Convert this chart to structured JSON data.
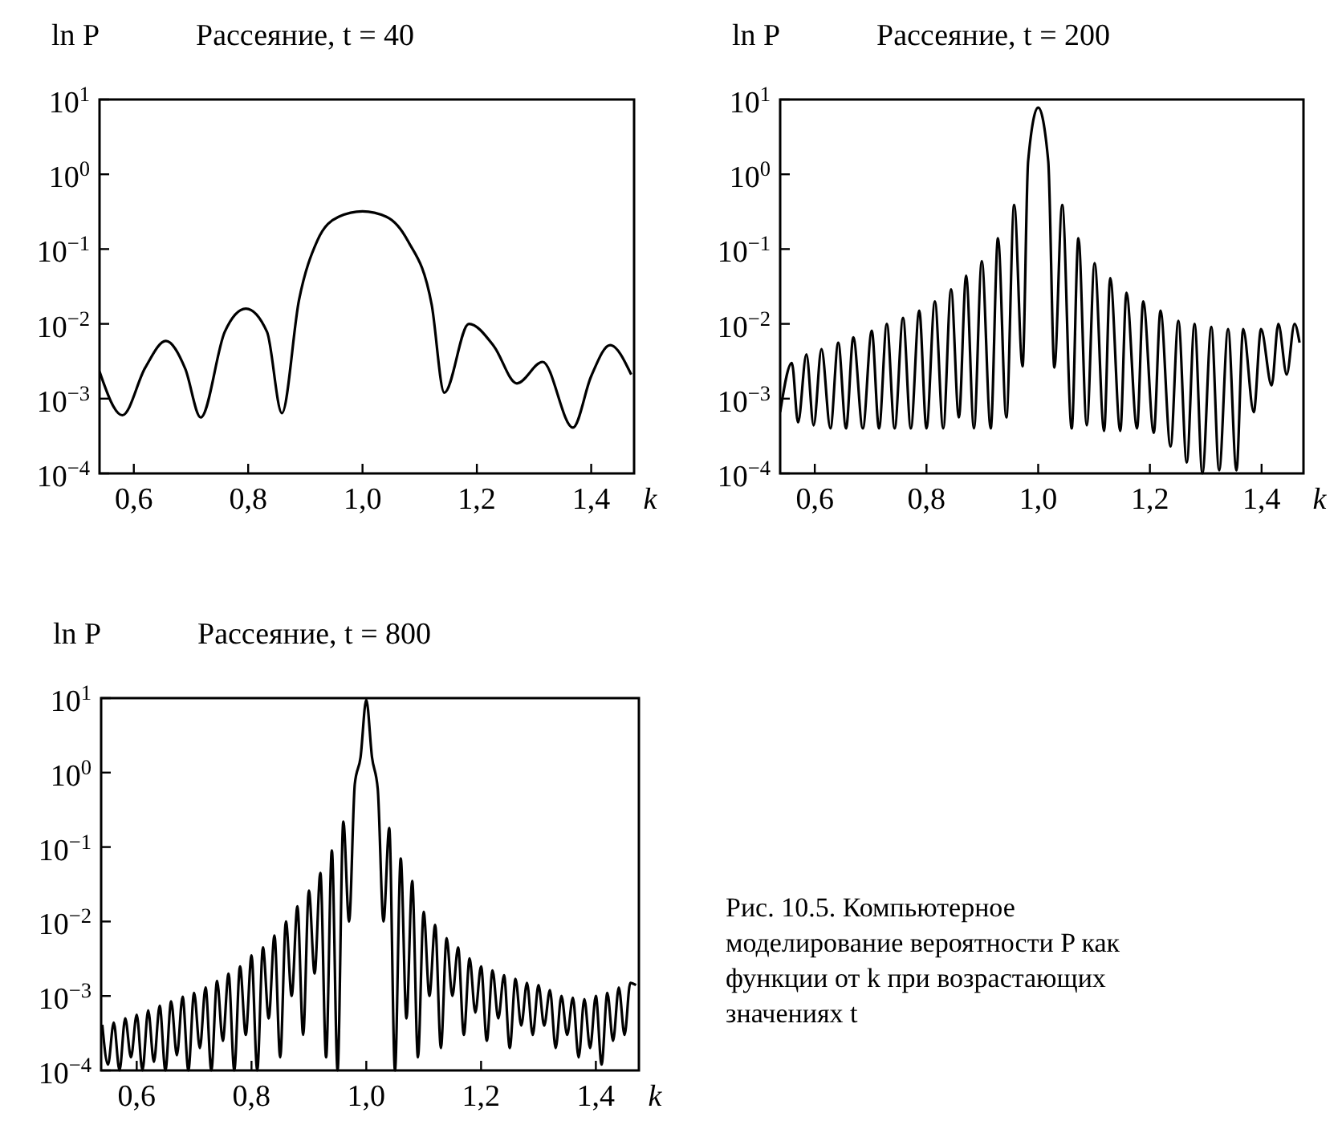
{
  "chart_data": [
    {
      "type": "line",
      "title": "Рассеяние,  t = 40",
      "ylabel": "ln P",
      "xlabel": "k",
      "log": "y",
      "xlim": [
        0.54,
        1.475
      ],
      "ylim": [
        0.0001,
        10
      ],
      "xticks": [
        {
          "value": 0.6,
          "label": "0,6"
        },
        {
          "value": 0.8,
          "label": "0,8"
        },
        {
          "value": 1.0,
          "label": "1,0"
        },
        {
          "value": 1.2,
          "label": "1,2"
        },
        {
          "value": 1.4,
          "label": "1,4"
        }
      ],
      "yticks": [
        {
          "value": 0.0001,
          "label": "10$^{−4}$"
        },
        {
          "value": 0.001,
          "label": "10$^{−3}$"
        },
        {
          "value": 0.01,
          "label": "10$^{−2}$"
        },
        {
          "value": 0.1,
          "label": "10$^{−1}$"
        },
        {
          "value": 1,
          "label": "10$^{0}$"
        },
        {
          "value": 10,
          "label": "10$^{1}$"
        }
      ],
      "series": [
        {
          "color": "#000000",
          "x": [
            0.54,
            0.58,
            0.62,
            0.656,
            0.69,
            0.717,
            0.759,
            0.796,
            0.833,
            0.859,
            0.889,
            0.921,
            0.958,
            1.0,
            1.042,
            1.079,
            1.121,
            1.143,
            1.186,
            1.23,
            1.27,
            1.315,
            1.368,
            1.4,
            1.433,
            1.47
          ],
          "values": [
            0.0023,
            0.0006,
            0.0026,
            0.0059,
            0.0025,
            0.00056,
            0.0078,
            0.016,
            0.0078,
            0.00064,
            0.021,
            0.13,
            0.27,
            0.32,
            0.27,
            0.13,
            0.018,
            0.0012,
            0.01,
            0.005,
            0.0016,
            0.0031,
            0.00041,
            0.002,
            0.0052,
            0.0021
          ]
        }
      ]
    },
    {
      "type": "line",
      "title": "Рассеяние,  t = 200",
      "ylabel": "ln P",
      "xlabel": "k",
      "log": "y",
      "xlim": [
        0.538,
        1.475
      ],
      "ylim": [
        0.0001,
        10
      ],
      "xticks": [
        {
          "value": 0.6,
          "label": "0,6"
        },
        {
          "value": 0.8,
          "label": "0,8"
        },
        {
          "value": 1.0,
          "label": "1,0"
        },
        {
          "value": 1.2,
          "label": "1,2"
        },
        {
          "value": 1.4,
          "label": "1,4"
        }
      ],
      "yticks": [
        {
          "value": 0.0001,
          "label": "10$^{−4}$"
        },
        {
          "value": 0.001,
          "label": "10$^{−3}$"
        },
        {
          "value": 0.01,
          "label": "10$^{−2}$"
        },
        {
          "value": 0.1,
          "label": "10$^{−1}$"
        },
        {
          "value": 1,
          "label": "10$^{0}$"
        },
        {
          "value": 10,
          "label": "10$^{1}$"
        }
      ],
      "series": [
        {
          "color": "#000000",
          "x": [
            0.538,
            0.559,
            0.57,
            0.585,
            0.598,
            0.612,
            0.628,
            0.642,
            0.656,
            0.669,
            0.686,
            0.702,
            0.715,
            0.729,
            0.743,
            0.758,
            0.772,
            0.787,
            0.8,
            0.815,
            0.83,
            0.844,
            0.858,
            0.871,
            0.885,
            0.899,
            0.915,
            0.928,
            0.943,
            0.957,
            0.972,
            0.982,
            1.0,
            1.018,
            1.029,
            1.043,
            1.06,
            1.072,
            1.087,
            1.101,
            1.118,
            1.129,
            1.147,
            1.158,
            1.177,
            1.188,
            1.207,
            1.219,
            1.237,
            1.251,
            1.266,
            1.28,
            1.294,
            1.31,
            1.324,
            1.34,
            1.355,
            1.367,
            1.386,
            1.399,
            1.418,
            1.43,
            1.445,
            1.459,
            1.468
          ],
          "values": [
            0.00066,
            0.003,
            0.00048,
            0.0039,
            0.00044,
            0.0046,
            0.0004,
            0.0056,
            0.0004,
            0.0066,
            0.0004,
            0.0081,
            0.0004,
            0.01,
            0.0004,
            0.012,
            0.0004,
            0.015,
            0.0004,
            0.02,
            0.0004,
            0.029,
            0.00056,
            0.044,
            0.0004,
            0.069,
            0.0004,
            0.14,
            0.00056,
            0.39,
            0.0027,
            1.5,
            7.8,
            1.5,
            0.0026,
            0.39,
            0.0004,
            0.14,
            0.00044,
            0.065,
            0.00037,
            0.041,
            0.00037,
            0.026,
            0.0004,
            0.02,
            0.00035,
            0.015,
            0.00023,
            0.011,
            0.00014,
            0.01,
            0.0001,
            0.0091,
            0.00011,
            0.0085,
            0.00011,
            0.0085,
            0.00066,
            0.0085,
            0.0015,
            0.01,
            0.0021,
            0.01,
            0.0056
          ]
        }
      ]
    },
    {
      "type": "line",
      "title": "Рассеяние,  t = 800",
      "ylabel": "ln P",
      "xlabel": "k",
      "log": "y",
      "xlim": [
        0.538,
        1.475
      ],
      "ylim": [
        0.0001,
        10
      ],
      "xticks": [
        {
          "value": 0.6,
          "label": "0,6"
        },
        {
          "value": 0.8,
          "label": "0,8"
        },
        {
          "value": 1.0,
          "label": "1,0"
        },
        {
          "value": 1.2,
          "label": "1,2"
        },
        {
          "value": 1.4,
          "label": "1,4"
        }
      ],
      "yticks": [
        {
          "value": 0.0001,
          "label": "10$^{−4}$"
        },
        {
          "value": 0.001,
          "label": "10$^{−3}$"
        },
        {
          "value": 0.01,
          "label": "10$^{−2}$"
        },
        {
          "value": 0.1,
          "label": "10$^{−1}$"
        },
        {
          "value": 1,
          "label": "10$^{0}$"
        },
        {
          "value": 10,
          "label": "10$^{1}$"
        }
      ],
      "annotations": [
        "Рис. 10.5. Компьютерное моделирование вероятности P как функции от k при возрастающих значениях t"
      ],
      "series": [
        {
          "color": "#000000",
          "x": [
            0.54,
            0.55,
            0.56,
            0.57,
            0.58,
            0.59,
            0.6,
            0.61,
            0.62,
            0.63,
            0.64,
            0.65,
            0.66,
            0.67,
            0.68,
            0.69,
            0.7,
            0.71,
            0.72,
            0.73,
            0.74,
            0.75,
            0.76,
            0.77,
            0.78,
            0.79,
            0.8,
            0.81,
            0.82,
            0.83,
            0.84,
            0.85,
            0.86,
            0.87,
            0.88,
            0.89,
            0.9,
            0.91,
            0.92,
            0.93,
            0.94,
            0.95,
            0.96,
            0.97,
            0.98,
            0.99,
            1.0,
            1.01,
            1.02,
            1.03,
            1.04,
            1.05,
            1.06,
            1.07,
            1.08,
            1.09,
            1.1,
            1.11,
            1.12,
            1.13,
            1.14,
            1.15,
            1.16,
            1.17,
            1.18,
            1.19,
            1.2,
            1.21,
            1.22,
            1.23,
            1.24,
            1.25,
            1.26,
            1.27,
            1.28,
            1.29,
            1.3,
            1.31,
            1.32,
            1.33,
            1.34,
            1.35,
            1.36,
            1.37,
            1.38,
            1.39,
            1.4,
            1.41,
            1.42,
            1.43,
            1.44,
            1.45,
            1.46,
            1.47
          ],
          "values": [
            0.00041,
            0.00012,
            0.00044,
            0.0001,
            0.0005,
            0.00015,
            0.00056,
            0.0001,
            0.00064,
            0.00013,
            0.00074,
            0.0001,
            0.00085,
            0.00016,
            0.00098,
            0.0001,
            0.0011,
            0.0002,
            0.0013,
            0.0001,
            0.0016,
            0.00025,
            0.002,
            0.0001,
            0.0025,
            0.0003,
            0.0035,
            0.0001,
            0.0045,
            0.0005,
            0.0065,
            0.00015,
            0.01,
            0.001,
            0.016,
            0.0003,
            0.026,
            0.002,
            0.045,
            0.00015,
            0.09,
            0.0001,
            0.22,
            0.01,
            0.7,
            1.6,
            9.5,
            1.6,
            0.6,
            0.01,
            0.18,
            0.0001,
            0.07,
            0.0005,
            0.035,
            0.00015,
            0.0135,
            0.001,
            0.009,
            0.0002,
            0.006,
            0.001,
            0.0045,
            0.0003,
            0.0032,
            0.0006,
            0.0025,
            0.00025,
            0.0022,
            0.0005,
            0.0019,
            0.0002,
            0.0017,
            0.0004,
            0.0015,
            0.0003,
            0.0014,
            0.0004,
            0.0012,
            0.0002,
            0.001,
            0.0003,
            0.00095,
            0.00015,
            0.00091,
            0.0002,
            0.001,
            0.00012,
            0.0011,
            0.00025,
            0.0013,
            0.0003,
            0.0015,
            0.0014
          ]
        }
      ]
    }
  ]
}
